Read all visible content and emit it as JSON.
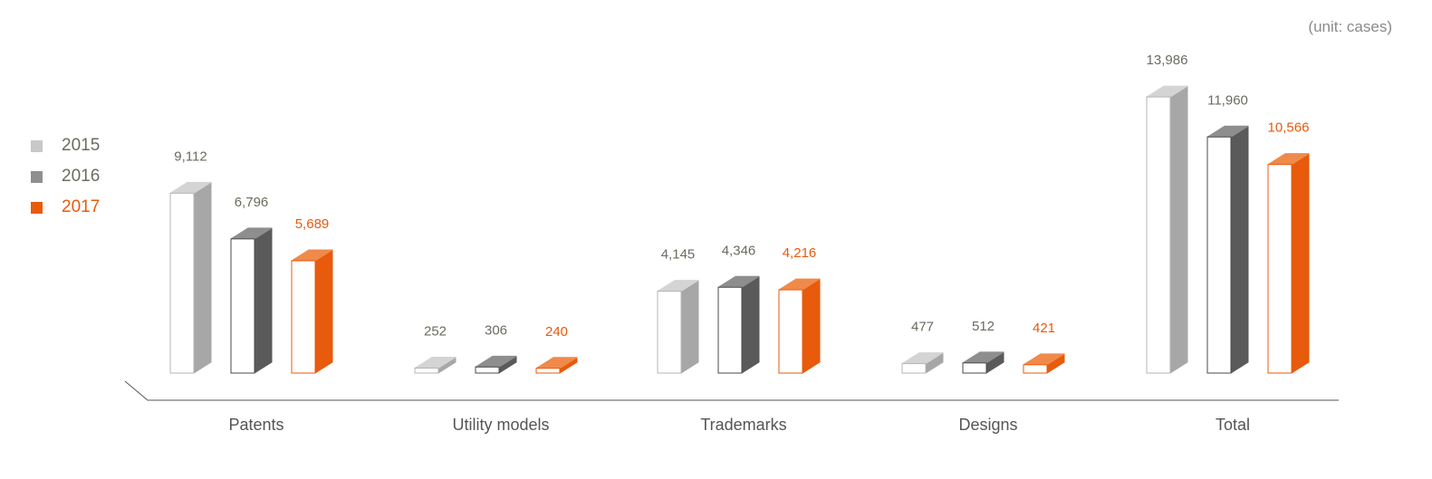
{
  "unit_note": "(unit: cases)",
  "colors": {
    "series_2015": "#c8c8c8",
    "series_2016": "#8f8f8f",
    "series_2017": "#e85a0c",
    "label_dark": "#6b6b5f",
    "label_orange": "#e85a0c",
    "axis": "#555555"
  },
  "chart_data": {
    "type": "bar",
    "style": "3d-isometric-columns",
    "title": "",
    "xlabel": "",
    "ylabel": "",
    "unit": "(unit: cases)",
    "categories": [
      "Patents",
      "Utility models",
      "Trademarks",
      "Designs",
      "Total"
    ],
    "series": [
      {
        "name": "2015",
        "values": [
          9112,
          252,
          4145,
          477,
          13986
        ],
        "labels": [
          "9,112",
          "252",
          "4,145",
          "477",
          "13,986"
        ]
      },
      {
        "name": "2016",
        "values": [
          6796,
          306,
          4346,
          512,
          11960
        ],
        "labels": [
          "6,796",
          "306",
          "4,346",
          "512",
          "11,960"
        ]
      },
      {
        "name": "2017",
        "values": [
          5689,
          240,
          4216,
          421,
          10566
        ],
        "labels": [
          "5,689",
          "240",
          "4,216",
          "421",
          "10,566"
        ]
      }
    ],
    "legend_position": "left",
    "grid": false,
    "axes_visible": false
  }
}
